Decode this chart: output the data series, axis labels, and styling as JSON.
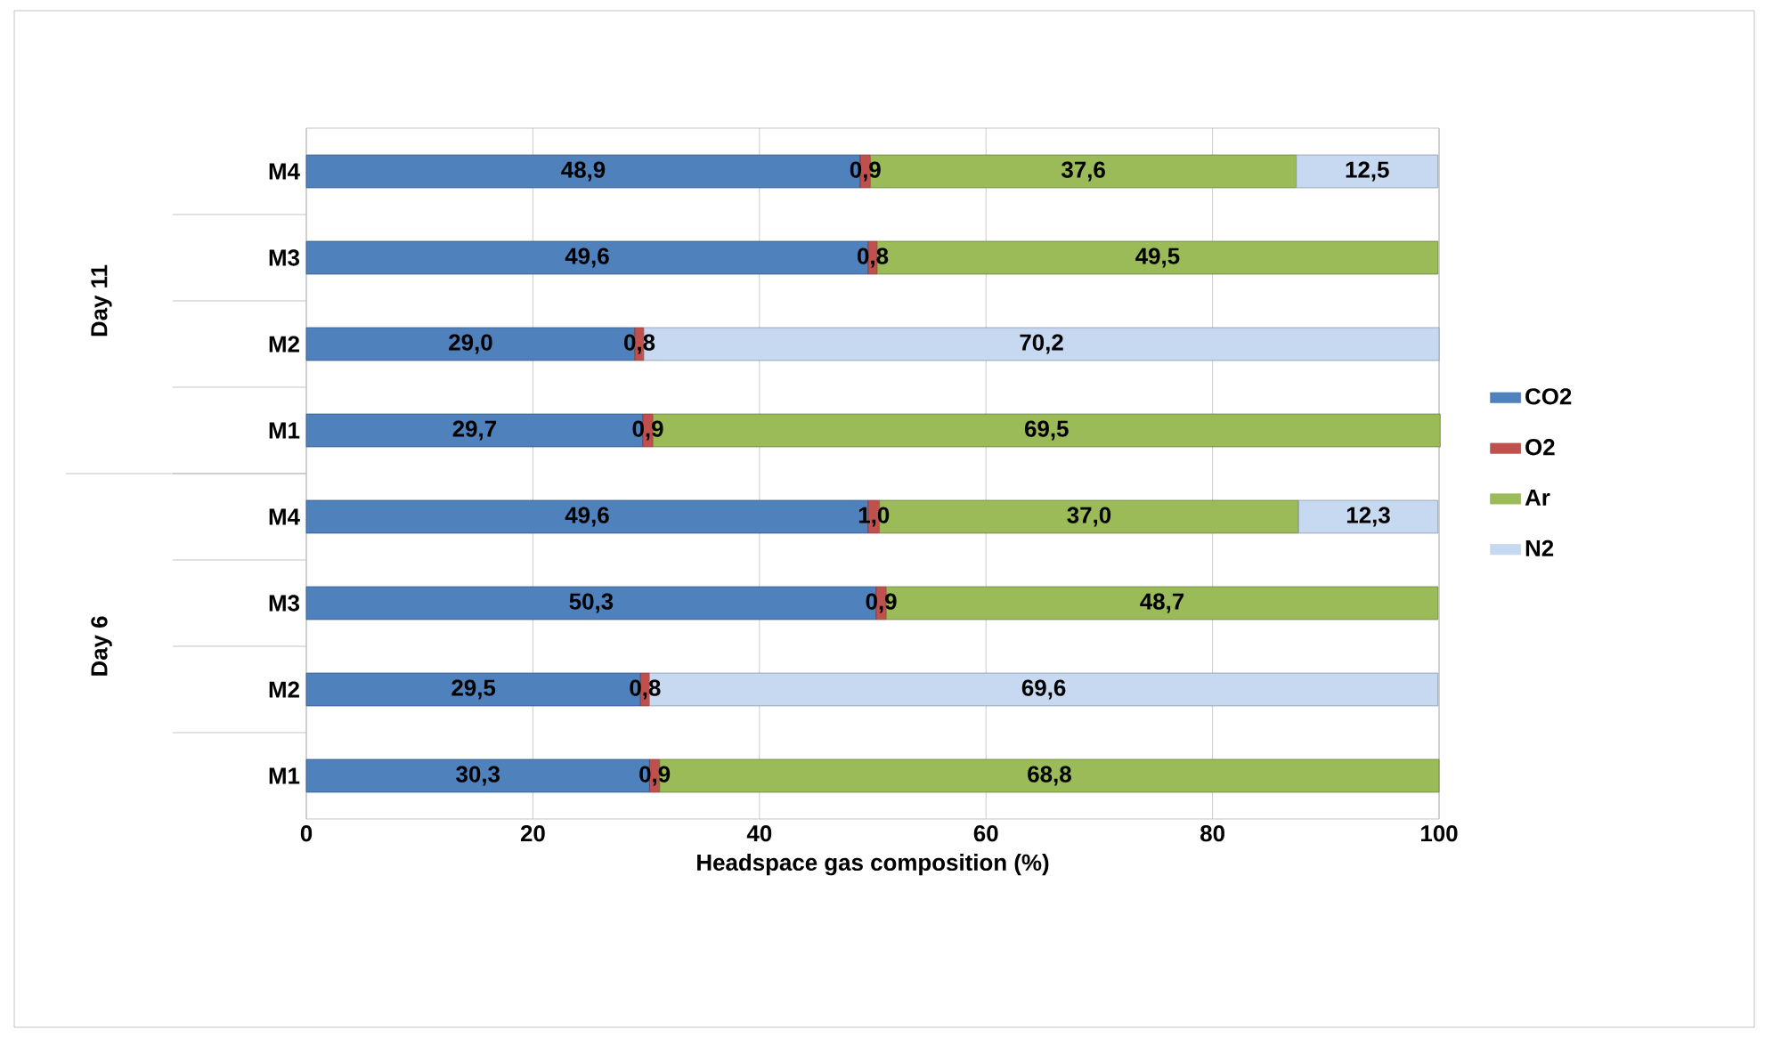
{
  "chart_data": {
    "type": "bar",
    "orientation": "horizontal",
    "stacked": true,
    "xlabel": "Headspace gas composition (%)",
    "categories": [
      "M4",
      "M3",
      "M2",
      "M1",
      "M4",
      "M3",
      "M2",
      "M1"
    ],
    "series": [
      {
        "name": "CO2",
        "color": "#4f81bd",
        "values": [
          48.9,
          49.6,
          29.0,
          29.7,
          49.6,
          50.3,
          29.5,
          30.3
        ],
        "value_labels": [
          "48,9",
          "49,6",
          "29,0",
          "29,7",
          "49,6",
          "50,3",
          "29,5",
          "30,3"
        ]
      },
      {
        "name": "O2",
        "color": "#c0504d",
        "values": [
          0.9,
          0.8,
          0.8,
          0.9,
          1.0,
          0.9,
          0.8,
          0.9
        ],
        "value_labels": [
          "0,9",
          "0,8",
          "0,8",
          "0,9",
          "1,0",
          "0,9",
          "0,8",
          "0,9"
        ]
      },
      {
        "name": "Ar",
        "color": "#9bbb59",
        "values": [
          37.6,
          49.5,
          null,
          69.5,
          37.0,
          48.7,
          null,
          68.8
        ],
        "value_labels": [
          "37,6",
          "49,5",
          null,
          "69,5",
          "37,0",
          "48,7",
          null,
          "68,8"
        ]
      },
      {
        "name": "N2",
        "color": "#c6d9f1",
        "values": [
          12.5,
          null,
          70.2,
          null,
          12.3,
          null,
          69.6,
          null
        ],
        "value_labels": [
          "12,5",
          null,
          "70,2",
          null,
          "12,3",
          null,
          "69,6",
          null
        ]
      }
    ],
    "annotations": [
      "Day 11",
      "Day 6"
    ],
    "xlim": [
      0,
      100
    ],
    "xticks": [
      0,
      20,
      40,
      60,
      80,
      100
    ],
    "grid": "x",
    "legend": "right"
  }
}
